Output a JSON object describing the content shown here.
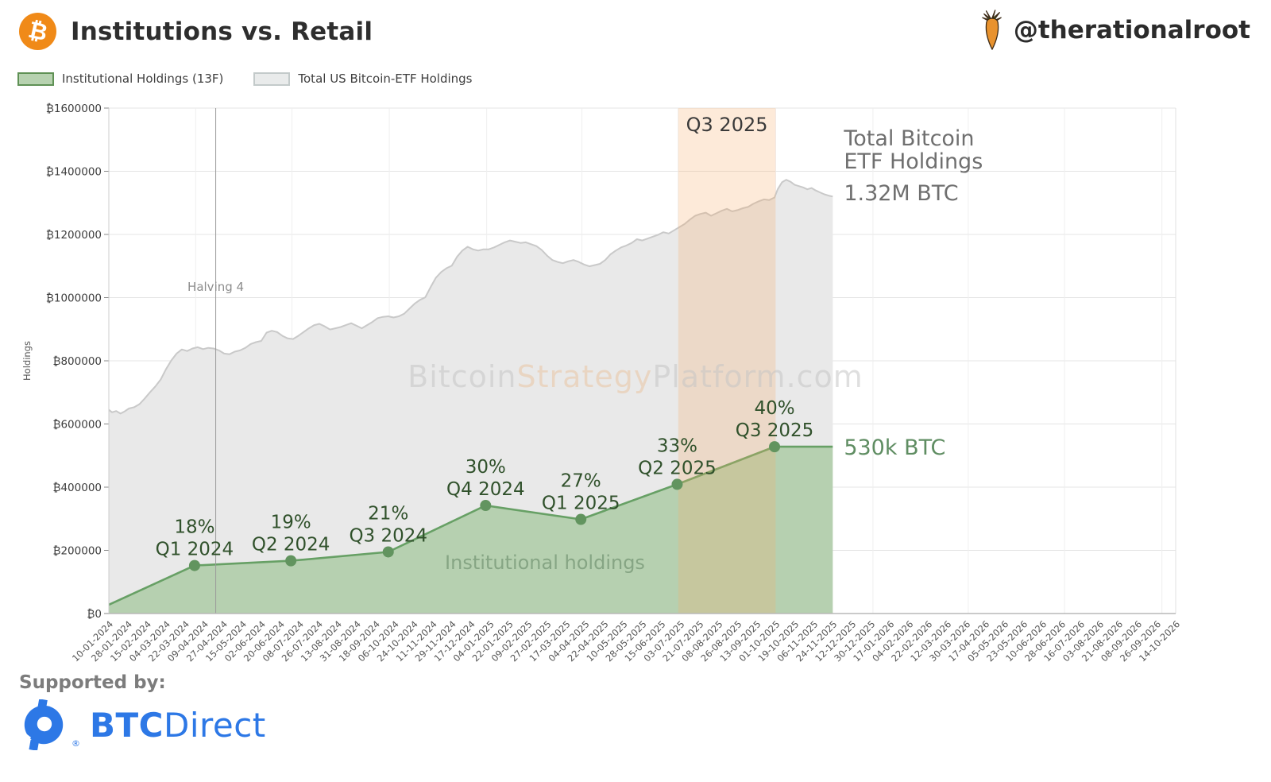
{
  "header": {
    "logo_glyph": "₿",
    "title": "Institutions vs. Retail",
    "handle": "@therationalroot"
  },
  "legend": {
    "items": [
      {
        "label": "Institutional Holdings (13F)",
        "swatch_fill": "#b7d2b0",
        "swatch_border": "#5f9155"
      },
      {
        "label": "Total US Bitcoin-ETF Holdings",
        "swatch_fill": "#e9ebeb",
        "swatch_border": "#c3caca"
      }
    ]
  },
  "footer": {
    "supported_by": "Supported by:",
    "brand_bold": "BTC",
    "brand_rest": "Direct",
    "registered_mark": "®"
  },
  "chart_data": {
    "type": "area",
    "title": "Institutions vs. Retail",
    "xlabel": "",
    "ylabel": "Holdings",
    "ytick_prefix": "₿",
    "ylim": [
      0,
      1600000
    ],
    "ytick_step": 200000,
    "grid": true,
    "legend_position": "top-left",
    "value_unit": "BTC",
    "value_unit_multiplier": 1000,
    "x_start_date": "2024-01-10",
    "x_end_date": "2026-10-14",
    "xtick_interval_days": 18,
    "xtick_labels": [
      "10-01-2024",
      "28-01-2024",
      "15-02-2024",
      "04-03-2024",
      "22-03-2024",
      "09-04-2024",
      "27-04-2024",
      "15-05-2024",
      "02-06-2024",
      "20-06-2024",
      "08-07-2024",
      "26-07-2024",
      "13-08-2024",
      "31-08-2024",
      "18-09-2024",
      "06-10-2024",
      "24-10-2024",
      "11-11-2024",
      "29-11-2024",
      "17-12-2024",
      "04-01-2025",
      "22-01-2025",
      "09-02-2025",
      "27-02-2025",
      "17-03-2025",
      "04-04-2025",
      "22-04-2025",
      "10-05-2025",
      "28-05-2025",
      "15-06-2025",
      "03-07-2025",
      "21-07-2025",
      "08-08-2025",
      "26-08-2025",
      "13-09-2025",
      "01-10-2025",
      "19-10-2025",
      "06-11-2025",
      "24-11-2025",
      "12-12-2025",
      "30-12-2025",
      "17-01-2026",
      "04-02-2026",
      "22-02-2026",
      "12-03-2026",
      "30-03-2026",
      "17-04-2026",
      "05-05-2026",
      "23-05-2026",
      "10-06-2026",
      "28-06-2026",
      "16-07-2026",
      "03-08-2026",
      "21-08-2026",
      "08-09-2026",
      "26-09-2026",
      "14-10-2026"
    ],
    "vertical_gridline_dates": [
      "2024-04-01",
      "2024-07-01",
      "2024-10-01",
      "2025-01-01",
      "2025-04-01",
      "2025-07-01",
      "2025-10-01",
      "2026-01-01",
      "2026-04-01",
      "2026-07-01",
      "2026-10-01"
    ],
    "watermark_parts": [
      {
        "text": "Bitcoin",
        "color": "#c6c6c6"
      },
      {
        "text": "Strategy",
        "color": "#e9c6a4"
      },
      {
        "text": "Platform.com",
        "color": "#c6c6c6"
      }
    ],
    "halving_marker": {
      "label": "Halving 4",
      "date": "2024-04-20"
    },
    "highlight_band": {
      "label": "Q3 2025",
      "start_date": "2025-07-01",
      "end_date": "2025-10-01",
      "fill": "rgba(246,173,104,0.25)"
    },
    "annotation_color": "#30512b",
    "series": [
      {
        "name": "Total US Bitcoin-ETF Holdings",
        "fill": "#e9e9e9",
        "stroke": "#c9c9c9",
        "points_k": [
          [
            "2024-01-10",
            645
          ],
          [
            "2024-01-13",
            637
          ],
          [
            "2024-01-17",
            641
          ],
          [
            "2024-01-21",
            633
          ],
          [
            "2024-01-25",
            640
          ],
          [
            "2024-01-29",
            649
          ],
          [
            "2024-02-03",
            653
          ],
          [
            "2024-02-08",
            663
          ],
          [
            "2024-02-13",
            681
          ],
          [
            "2024-02-18",
            701
          ],
          [
            "2024-02-23",
            719
          ],
          [
            "2024-02-28",
            741
          ],
          [
            "2024-03-04",
            773
          ],
          [
            "2024-03-09",
            801
          ],
          [
            "2024-03-14",
            823
          ],
          [
            "2024-03-19",
            836
          ],
          [
            "2024-03-24",
            831
          ],
          [
            "2024-03-29",
            839
          ],
          [
            "2024-04-03",
            843
          ],
          [
            "2024-04-08",
            837
          ],
          [
            "2024-04-13",
            841
          ],
          [
            "2024-04-18",
            839
          ],
          [
            "2024-04-23",
            833
          ],
          [
            "2024-04-28",
            823
          ],
          [
            "2024-05-03",
            821
          ],
          [
            "2024-05-08",
            829
          ],
          [
            "2024-05-13",
            833
          ],
          [
            "2024-05-18",
            841
          ],
          [
            "2024-05-23",
            853
          ],
          [
            "2024-05-28",
            859
          ],
          [
            "2024-06-02",
            863
          ],
          [
            "2024-06-07",
            889
          ],
          [
            "2024-06-12",
            895
          ],
          [
            "2024-06-17",
            891
          ],
          [
            "2024-06-22",
            879
          ],
          [
            "2024-06-27",
            871
          ],
          [
            "2024-07-02",
            869
          ],
          [
            "2024-07-07",
            879
          ],
          [
            "2024-07-12",
            891
          ],
          [
            "2024-07-17",
            903
          ],
          [
            "2024-07-22",
            913
          ],
          [
            "2024-07-27",
            917
          ],
          [
            "2024-08-01",
            909
          ],
          [
            "2024-08-06",
            899
          ],
          [
            "2024-08-11",
            903
          ],
          [
            "2024-08-16",
            907
          ],
          [
            "2024-08-21",
            913
          ],
          [
            "2024-08-26",
            919
          ],
          [
            "2024-08-31",
            911
          ],
          [
            "2024-09-05",
            903
          ],
          [
            "2024-09-10",
            913
          ],
          [
            "2024-09-15",
            923
          ],
          [
            "2024-09-20",
            935
          ],
          [
            "2024-09-25",
            939
          ],
          [
            "2024-09-30",
            941
          ],
          [
            "2024-10-05",
            937
          ],
          [
            "2024-10-10",
            941
          ],
          [
            "2024-10-15",
            949
          ],
          [
            "2024-10-20",
            965
          ],
          [
            "2024-10-25",
            981
          ],
          [
            "2024-10-30",
            993
          ],
          [
            "2024-11-04",
            1001
          ],
          [
            "2024-11-09",
            1033
          ],
          [
            "2024-11-14",
            1063
          ],
          [
            "2024-11-19",
            1081
          ],
          [
            "2024-11-24",
            1093
          ],
          [
            "2024-11-29",
            1101
          ],
          [
            "2024-12-04",
            1129
          ],
          [
            "2024-12-09",
            1149
          ],
          [
            "2024-12-14",
            1161
          ],
          [
            "2024-12-19",
            1153
          ],
          [
            "2024-12-24",
            1149
          ],
          [
            "2024-12-29",
            1153
          ],
          [
            "2025-01-03",
            1153
          ],
          [
            "2025-01-08",
            1159
          ],
          [
            "2025-01-13",
            1167
          ],
          [
            "2025-01-18",
            1175
          ],
          [
            "2025-01-23",
            1181
          ],
          [
            "2025-01-28",
            1177
          ],
          [
            "2025-02-02",
            1173
          ],
          [
            "2025-02-07",
            1175
          ],
          [
            "2025-02-12",
            1169
          ],
          [
            "2025-02-17",
            1163
          ],
          [
            "2025-02-22",
            1151
          ],
          [
            "2025-02-27",
            1133
          ],
          [
            "2025-03-04",
            1119
          ],
          [
            "2025-03-09",
            1113
          ],
          [
            "2025-03-14",
            1109
          ],
          [
            "2025-03-19",
            1115
          ],
          [
            "2025-03-24",
            1119
          ],
          [
            "2025-03-29",
            1113
          ],
          [
            "2025-04-03",
            1105
          ],
          [
            "2025-04-08",
            1099
          ],
          [
            "2025-04-13",
            1103
          ],
          [
            "2025-04-18",
            1107
          ],
          [
            "2025-04-23",
            1119
          ],
          [
            "2025-04-28",
            1137
          ],
          [
            "2025-05-03",
            1149
          ],
          [
            "2025-05-08",
            1159
          ],
          [
            "2025-05-13",
            1165
          ],
          [
            "2025-05-18",
            1173
          ],
          [
            "2025-05-23",
            1185
          ],
          [
            "2025-05-28",
            1181
          ],
          [
            "2025-06-02",
            1187
          ],
          [
            "2025-06-07",
            1193
          ],
          [
            "2025-06-12",
            1199
          ],
          [
            "2025-06-17",
            1207
          ],
          [
            "2025-06-22",
            1203
          ],
          [
            "2025-06-27",
            1213
          ],
          [
            "2025-07-02",
            1223
          ],
          [
            "2025-07-07",
            1233
          ],
          [
            "2025-07-12",
            1247
          ],
          [
            "2025-07-17",
            1259
          ],
          [
            "2025-07-22",
            1265
          ],
          [
            "2025-07-27",
            1269
          ],
          [
            "2025-08-01",
            1259
          ],
          [
            "2025-08-06",
            1267
          ],
          [
            "2025-08-11",
            1275
          ],
          [
            "2025-08-16",
            1281
          ],
          [
            "2025-08-21",
            1273
          ],
          [
            "2025-08-26",
            1277
          ],
          [
            "2025-08-31",
            1283
          ],
          [
            "2025-09-05",
            1287
          ],
          [
            "2025-09-10",
            1297
          ],
          [
            "2025-09-15",
            1305
          ],
          [
            "2025-09-20",
            1311
          ],
          [
            "2025-09-25",
            1309
          ],
          [
            "2025-09-30",
            1317
          ],
          [
            "2025-10-03",
            1343
          ],
          [
            "2025-10-07",
            1365
          ],
          [
            "2025-10-11",
            1373
          ],
          [
            "2025-10-15",
            1367
          ],
          [
            "2025-10-19",
            1357
          ],
          [
            "2025-10-23",
            1353
          ],
          [
            "2025-10-27",
            1349
          ],
          [
            "2025-10-31",
            1343
          ],
          [
            "2025-11-04",
            1347
          ],
          [
            "2025-11-08",
            1339
          ],
          [
            "2025-11-12",
            1333
          ],
          [
            "2025-11-16",
            1327
          ],
          [
            "2025-11-20",
            1323
          ],
          [
            "2025-11-24",
            1320
          ]
        ]
      },
      {
        "name": "Institutional Holdings (13F)",
        "fill": "#b6d0b0",
        "stroke": "#67a065",
        "dot_color": "#62945f",
        "points_k": [
          [
            "2024-01-10",
            28
          ],
          [
            "2024-03-31",
            152
          ],
          [
            "2024-06-30",
            167
          ],
          [
            "2024-09-30",
            195
          ],
          [
            "2024-12-31",
            342
          ],
          [
            "2025-03-31",
            298
          ],
          [
            "2025-06-30",
            409
          ],
          [
            "2025-09-30",
            528
          ],
          [
            "2025-11-24",
            528
          ]
        ]
      }
    ],
    "annotations": [
      {
        "pct": "18%",
        "label": "Q1 2024",
        "date": "2024-03-31",
        "value_k": 152
      },
      {
        "pct": "19%",
        "label": "Q2 2024",
        "date": "2024-06-30",
        "value_k": 167
      },
      {
        "pct": "21%",
        "label": "Q3 2024",
        "date": "2024-09-30",
        "value_k": 195
      },
      {
        "pct": "30%",
        "label": "Q4 2024",
        "date": "2024-12-31",
        "value_k": 342
      },
      {
        "pct": "27%",
        "label": "Q1 2025",
        "date": "2025-03-31",
        "value_k": 298
      },
      {
        "pct": "33%",
        "label": "Q2 2025",
        "date": "2025-06-30",
        "value_k": 409
      },
      {
        "pct": "40%",
        "label": "Q3 2025",
        "date": "2025-09-30",
        "value_k": 528
      }
    ],
    "callouts": {
      "etf_total": {
        "lines": [
          "Total Bitcoin",
          "ETF Holdings"
        ],
        "value": "1.32M BTC",
        "color": "#6f6f6f"
      },
      "institutional_value": {
        "text": "530k BTC",
        "color": "#5f8d62"
      },
      "institutional_area_label": {
        "text": "Institutional holdings",
        "color": "#86a584"
      }
    }
  }
}
